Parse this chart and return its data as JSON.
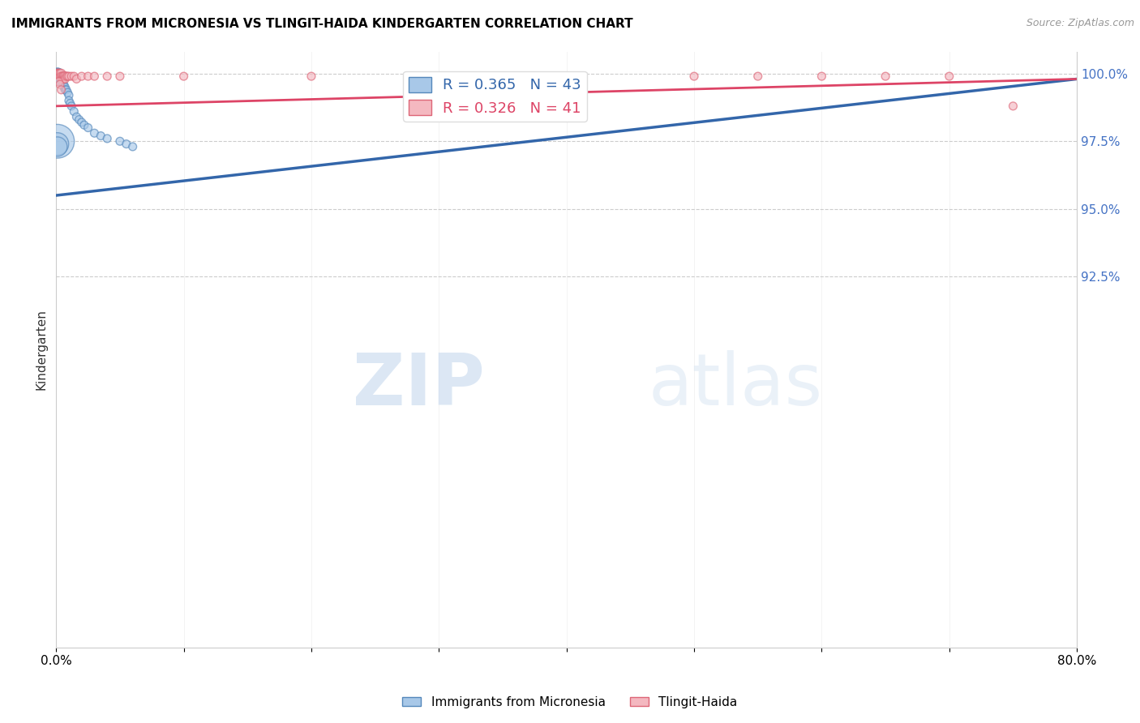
{
  "title": "IMMIGRANTS FROM MICRONESIA VS TLINGIT-HAIDA KINDERGARTEN CORRELATION CHART",
  "source_text": "Source: ZipAtlas.com",
  "xlabel": "",
  "ylabel": "Kindergarten",
  "xlim": [
    0.0,
    0.8
  ],
  "ylim": [
    0.788,
    1.008
  ],
  "xtick_labels": [
    "0.0%",
    "",
    "",
    "",
    "",
    "",
    "",
    "",
    "80.0%"
  ],
  "xtick_values": [
    0.0,
    0.1,
    0.2,
    0.3,
    0.4,
    0.5,
    0.6,
    0.7,
    0.8
  ],
  "ytick_right_labels": [
    "100.0%",
    "97.5%",
    "95.0%",
    "92.5%"
  ],
  "ytick_right_values": [
    1.0,
    0.975,
    0.95,
    0.925
  ],
  "blue_color": "#a8c8e8",
  "pink_color": "#f4b8c0",
  "blue_edge_color": "#5588bb",
  "pink_edge_color": "#dd6677",
  "blue_line_color": "#3366aa",
  "pink_line_color": "#dd4466",
  "R_blue": 0.365,
  "N_blue": 43,
  "R_pink": 0.326,
  "N_pink": 41,
  "legend_label_blue": "Immigrants from Micronesia",
  "legend_label_pink": "Tlingit-Haida",
  "watermark_zip": "ZIP",
  "watermark_atlas": "atlas",
  "blue_x": [
    0.001,
    0.001,
    0.001,
    0.002,
    0.002,
    0.002,
    0.002,
    0.002,
    0.002,
    0.003,
    0.003,
    0.003,
    0.003,
    0.004,
    0.004,
    0.004,
    0.005,
    0.005,
    0.006,
    0.006,
    0.007,
    0.007,
    0.008,
    0.009,
    0.01,
    0.01,
    0.011,
    0.012,
    0.014,
    0.016,
    0.018,
    0.02,
    0.022,
    0.025,
    0.03,
    0.035,
    0.04,
    0.05,
    0.055,
    0.06,
    0.001,
    0.001,
    0.001
  ],
  "blue_y": [
    1.0,
    1.0,
    0.999,
    1.0,
    0.999,
    0.998,
    0.999,
    0.998,
    0.997,
    0.998,
    0.997,
    0.999,
    0.998,
    0.999,
    0.998,
    0.997,
    0.998,
    0.997,
    0.996,
    0.995,
    0.995,
    0.994,
    0.994,
    0.993,
    0.992,
    0.99,
    0.989,
    0.988,
    0.986,
    0.984,
    0.983,
    0.982,
    0.981,
    0.98,
    0.978,
    0.977,
    0.976,
    0.975,
    0.974,
    0.973,
    0.975,
    0.974,
    0.973
  ],
  "blue_size": [
    100,
    80,
    60,
    80,
    60,
    60,
    50,
    50,
    50,
    60,
    50,
    50,
    50,
    50,
    50,
    50,
    50,
    50,
    50,
    50,
    50,
    50,
    50,
    50,
    50,
    50,
    50,
    50,
    50,
    50,
    50,
    50,
    50,
    50,
    50,
    50,
    50,
    50,
    50,
    50,
    900,
    400,
    300
  ],
  "pink_x": [
    0.001,
    0.001,
    0.001,
    0.002,
    0.002,
    0.002,
    0.002,
    0.003,
    0.003,
    0.004,
    0.004,
    0.005,
    0.005,
    0.006,
    0.006,
    0.007,
    0.007,
    0.008,
    0.009,
    0.01,
    0.012,
    0.014,
    0.016,
    0.02,
    0.025,
    0.03,
    0.04,
    0.05,
    0.1,
    0.2,
    0.3,
    0.4,
    0.5,
    0.55,
    0.6,
    0.65,
    0.7,
    0.75,
    0.002,
    0.003,
    0.004
  ],
  "pink_y": [
    1.0,
    1.0,
    1.0,
    1.0,
    1.0,
    1.0,
    0.999,
    1.0,
    0.999,
    1.0,
    0.999,
    0.999,
    0.998,
    0.999,
    0.998,
    0.999,
    0.998,
    0.999,
    0.999,
    0.999,
    0.999,
    0.999,
    0.998,
    0.999,
    0.999,
    0.999,
    0.999,
    0.999,
    0.999,
    0.999,
    0.999,
    0.999,
    0.999,
    0.999,
    0.999,
    0.999,
    0.999,
    0.988,
    0.997,
    0.996,
    0.994
  ],
  "pink_size": [
    60,
    60,
    50,
    60,
    60,
    50,
    50,
    60,
    50,
    60,
    50,
    50,
    50,
    60,
    50,
    60,
    50,
    50,
    50,
    50,
    50,
    50,
    50,
    50,
    50,
    50,
    50,
    50,
    50,
    50,
    50,
    50,
    50,
    50,
    50,
    50,
    50,
    50,
    50,
    50,
    50
  ]
}
